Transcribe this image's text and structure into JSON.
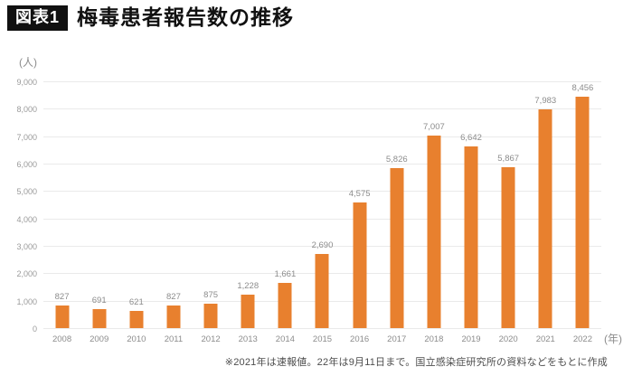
{
  "header": {
    "badge": "図表1",
    "title": "梅毒患者報告数の推移"
  },
  "chart_data": {
    "type": "bar",
    "title": "梅毒患者報告数の推移",
    "xlabel": "",
    "ylabel": "",
    "y_unit": "(人)",
    "x_unit": "(年)",
    "ylim": [
      0,
      9000
    ],
    "ytick_interval": 1000,
    "yticks": [
      "9,000",
      "8,000",
      "7,000",
      "6,000",
      "5,000",
      "4,000",
      "3,000",
      "2,000",
      "1,000",
      "0"
    ],
    "categories": [
      "2008",
      "2009",
      "2010",
      "2011",
      "2012",
      "2013",
      "2014",
      "2015",
      "2016",
      "2017",
      "2018",
      "2019",
      "2020",
      "2021",
      "2022"
    ],
    "values": [
      827,
      691,
      621,
      827,
      875,
      1228,
      1661,
      2690,
      4575,
      5826,
      7007,
      6642,
      5867,
      7983,
      8456
    ],
    "value_labels": [
      "827",
      "691",
      "621",
      "827",
      "875",
      "1,228",
      "1,661",
      "2,690",
      "4,575",
      "5,826",
      "7,007",
      "6,642",
      "5,867",
      "7,983",
      "8,456"
    ],
    "legend": "none",
    "grid": "horizontal",
    "bar_color": "#e8802e",
    "grid_color": "#eaeaea",
    "label_color": "#8c8c8c"
  },
  "footnote": "※2021年は速報値。22年は9月11日まで。国立感染症研究所の資料などをもとに作成"
}
